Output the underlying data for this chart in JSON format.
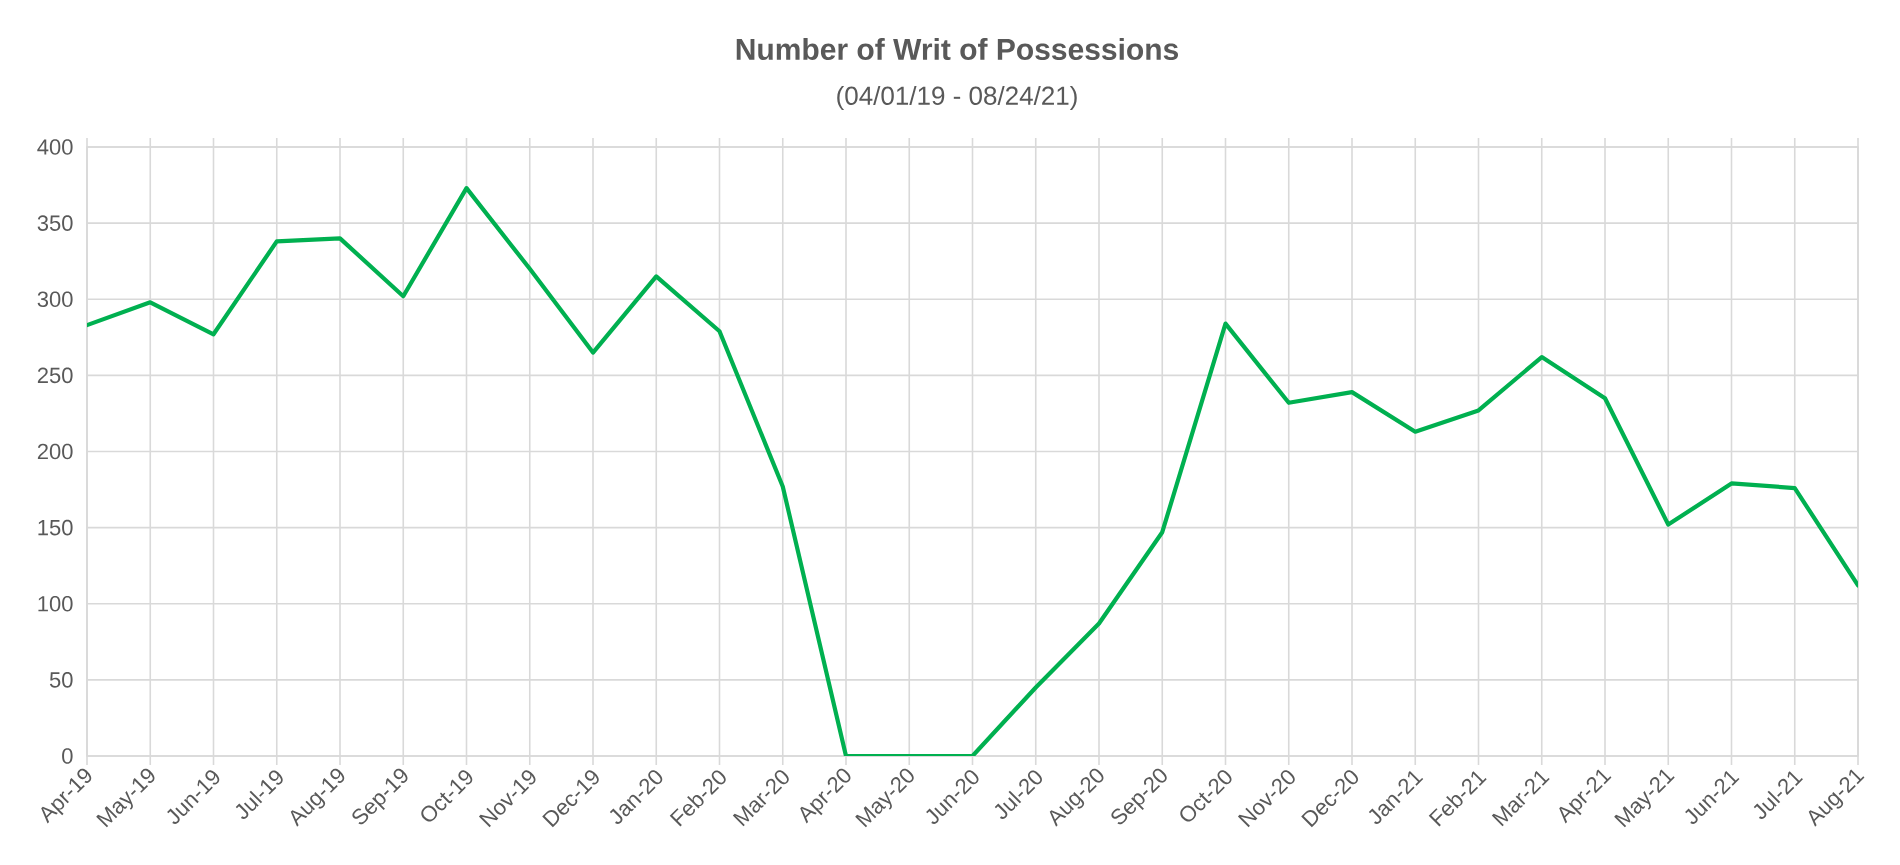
{
  "chart_data": {
    "type": "line",
    "title": "Number of Writ of Possessions",
    "subtitle": "(04/01/19 - 08/24/21)",
    "categories": [
      "Apr-19",
      "May-19",
      "Jun-19",
      "Jul-19",
      "Aug-19",
      "Sep-19",
      "Oct-19",
      "Nov-19",
      "Dec-19",
      "Jan-20",
      "Feb-20",
      "Mar-20",
      "Apr-20",
      "May-20",
      "Jun-20",
      "Jul-20",
      "Aug-20",
      "Sep-20",
      "Oct-20",
      "Nov-20",
      "Dec-20",
      "Jan-21",
      "Feb-21",
      "Mar-21",
      "Apr-21",
      "May-21",
      "Jun-21",
      "Jul-21",
      "Aug-21"
    ],
    "series": [
      {
        "color": "#00b050",
        "values": [
          283,
          298,
          277,
          338,
          340,
          302,
          373,
          320,
          265,
          315,
          279,
          177,
          0,
          0,
          0,
          45,
          87,
          147,
          284,
          232,
          239,
          213,
          227,
          262,
          235,
          152,
          179,
          176,
          112
        ]
      }
    ],
    "ylim": [
      0,
      400
    ],
    "yticks": [
      0,
      50,
      100,
      150,
      200,
      250,
      300,
      350,
      400
    ],
    "grid": true
  }
}
